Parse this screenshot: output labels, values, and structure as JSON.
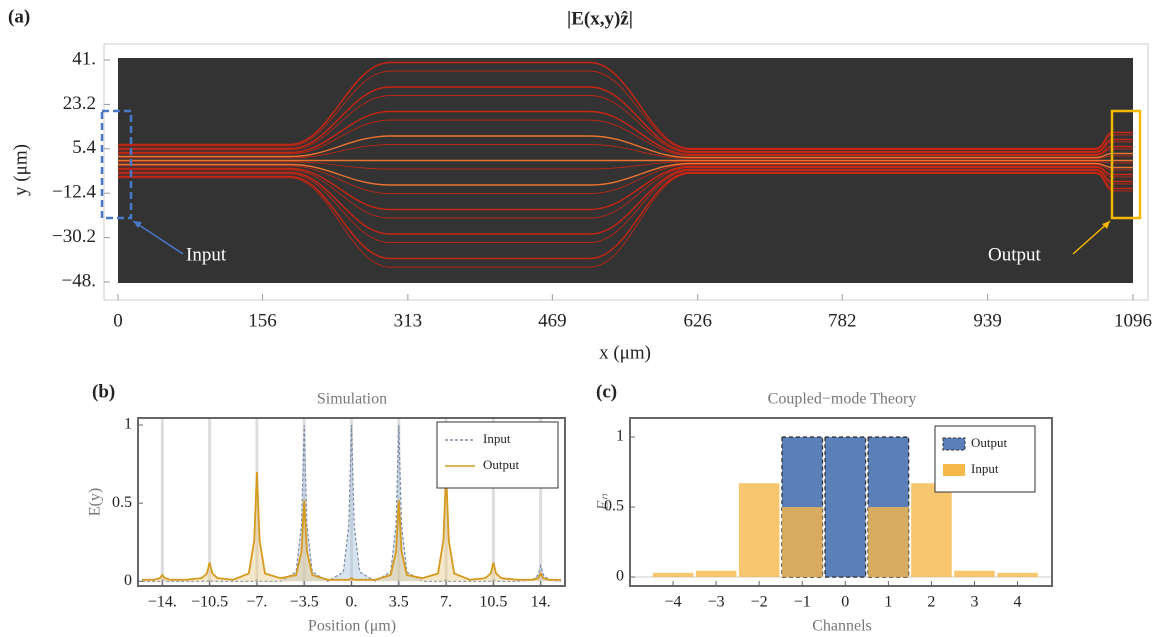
{
  "chart_data": [
    {
      "type": "heatmap",
      "label": "(a)",
      "title": "|E(x,y)ẑ|",
      "x_label": "x (μm)",
      "y_label": "y (μm)",
      "xlim": [
        0,
        1096
      ],
      "ylim": [
        -48.4,
        41.8
      ],
      "xticks": [
        0,
        156,
        313,
        469,
        626,
        782,
        939,
        1096
      ],
      "yticks": [
        {
          "value": 41,
          "label": "41."
        },
        {
          "value": 23.2,
          "label": "23.2"
        },
        {
          "value": 5.4,
          "label": "5.4"
        },
        {
          "value": -12.4,
          "label": "−12.4"
        },
        {
          "value": -30.2,
          "label": "−30.2"
        },
        {
          "value": -48,
          "label": "−48."
        }
      ],
      "annotations": [
        "Input",
        "Output"
      ]
    },
    {
      "type": "line",
      "label": "(b)",
      "title": "Simulation",
      "x_label": "Position (μm)",
      "y_label": "E(y)",
      "xlim": [
        -15.8,
        15.8
      ],
      "ylim": [
        -0.03,
        1.045
      ],
      "grid": true,
      "legend": "top-right",
      "xticks": [
        {
          "value": -14,
          "label": "−14."
        },
        {
          "value": -10.5,
          "label": "−10.5"
        },
        {
          "value": -7,
          "label": "−7."
        },
        {
          "value": -3.5,
          "label": "−3.5"
        },
        {
          "value": 0,
          "label": "0."
        },
        {
          "value": 3.5,
          "label": "3.5"
        },
        {
          "value": 7,
          "label": "7."
        },
        {
          "value": 10.5,
          "label": "10.5"
        },
        {
          "value": 14,
          "label": "14."
        }
      ],
      "yticks": [
        0,
        0.5,
        1
      ],
      "x": [
        -15.5,
        -14.6,
        -14.2,
        -14,
        -13.8,
        -13.4,
        -12.25,
        -11.1,
        -10.7,
        -10.5,
        -10.3,
        -9.9,
        -8.75,
        -7.6,
        -7.2,
        -7,
        -6.8,
        -6.4,
        -5.25,
        -4.1,
        -3.7,
        -3.5,
        -3.3,
        -2.9,
        -1.75,
        -0.6,
        -0.2,
        0,
        0.2,
        0.6,
        1.75,
        2.9,
        3.3,
        3.5,
        3.7,
        4.1,
        5.25,
        6.4,
        6.8,
        7,
        7.2,
        7.6,
        8.75,
        9.9,
        10.3,
        10.5,
        10.7,
        11.1,
        12.25,
        13.4,
        13.8,
        14,
        14.2,
        14.6,
        15.5
      ],
      "series": [
        {
          "name": "Input",
          "color": "#7d8ba6",
          "fill": "#a9c0dd",
          "dashed": true,
          "values": [
            0,
            0,
            0,
            0.01,
            0,
            0,
            0,
            0,
            0,
            0.01,
            0,
            0,
            0,
            0,
            0,
            0.01,
            0,
            0,
            0,
            0.06,
            0.36,
            1,
            0.36,
            0.06,
            0,
            0.06,
            0.36,
            1,
            0.36,
            0.06,
            0,
            0.06,
            0.36,
            1,
            0.36,
            0.06,
            0,
            0,
            0,
            0.01,
            0,
            0,
            0,
            0,
            0,
            0.01,
            0,
            0,
            0,
            0.01,
            0.04,
            0.1,
            0.04,
            0.01,
            0
          ]
        },
        {
          "name": "Output",
          "color": "#d69a1e",
          "fill": "#e8c98a",
          "dashed": false,
          "values": [
            0.01,
            0.01,
            0.02,
            0.04,
            0.02,
            0.01,
            0.01,
            0.02,
            0.05,
            0.12,
            0.05,
            0.02,
            0.01,
            0.05,
            0.26,
            0.7,
            0.26,
            0.05,
            0.02,
            0.04,
            0.19,
            0.52,
            0.19,
            0.04,
            0.01,
            0.01,
            0.01,
            0.02,
            0.01,
            0.01,
            0.01,
            0.04,
            0.19,
            0.52,
            0.19,
            0.04,
            0.02,
            0.05,
            0.26,
            0.7,
            0.26,
            0.05,
            0.01,
            0.02,
            0.05,
            0.12,
            0.05,
            0.02,
            0.01,
            0.01,
            0.02,
            0.05,
            0.02,
            0.01,
            0.01
          ]
        }
      ]
    },
    {
      "type": "bar",
      "label": "(c)",
      "title": "Coupled−mode Theory",
      "x_label": "Channels",
      "y_label": "Eₙ",
      "ylim": [
        -0.064,
        1.136
      ],
      "yticks": [
        0,
        0.5,
        1
      ],
      "legend": "top-right",
      "categories": [
        "−4",
        "−3",
        "−2",
        "−1",
        "0",
        "1",
        "2",
        "3",
        "4"
      ],
      "series": [
        {
          "name": "Output",
          "color": "#5b7fb8",
          "dashed": true,
          "values": [
            0,
            0,
            0,
            1,
            1,
            1,
            0,
            0,
            0
          ]
        },
        {
          "name": "Input",
          "color": "#f6b84a",
          "dashed": false,
          "values": [
            0.03,
            0.045,
            0.67,
            0.5,
            0,
            0.5,
            0.67,
            0.045,
            0.03
          ]
        }
      ]
    }
  ]
}
